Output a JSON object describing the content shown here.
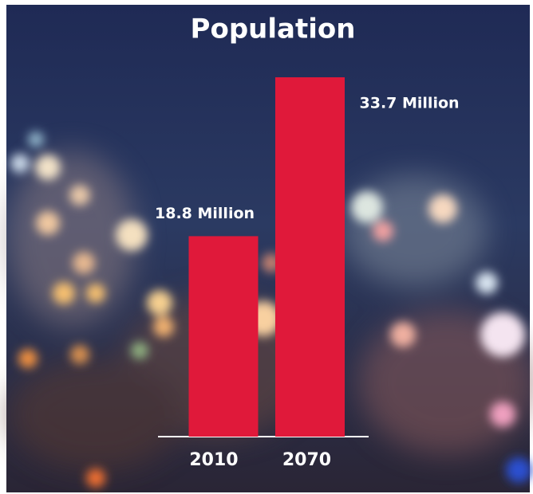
{
  "chart_data": {
    "type": "bar",
    "title": "Population",
    "categories": [
      "2010",
      "2070"
    ],
    "values": [
      18.8,
      33.7
    ],
    "value_labels": [
      "18.8 Million",
      "33.7 Million"
    ],
    "color": "#e0193a"
  }
}
